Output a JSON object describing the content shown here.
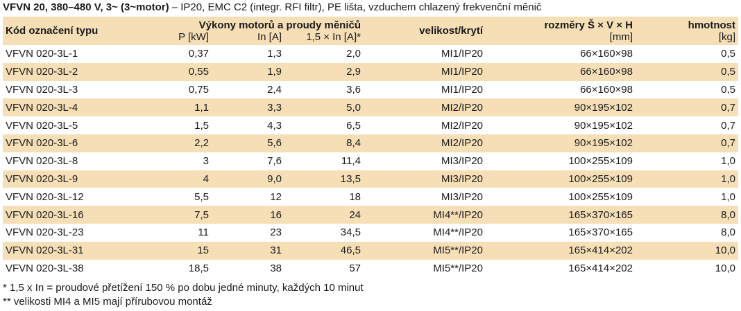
{
  "caption": {
    "bold": "VFVN 20, 380–480 V, 3~ (3~motor)",
    "rest": " – IP20, EMC C2 (integr. RFI filtr), PE lišta, vzduchem chlazený frekvenční měnič"
  },
  "headers": {
    "code": "Kód označení typu",
    "power_group": "Výkony motorů a proudy měničů",
    "size": "velikost/krytí",
    "dims": "rozměry Š × V × H",
    "weight": "hmotnost",
    "p_unit": "P [kW]",
    "in_unit": "In [A]",
    "overload_unit": "1,5 × In [A]*",
    "dims_unit": "[mm]",
    "weight_unit": "[kg]"
  },
  "rows": [
    {
      "code": "VFVN 020-3L-1",
      "p": "0,37",
      "in": "1,3",
      "ol": "2,0",
      "size": "MI1/IP20",
      "dims": "66×160×98",
      "mass": "0,5"
    },
    {
      "code": "VFVN 020-3L-2",
      "p": "0,55",
      "in": "1,9",
      "ol": "2,9",
      "size": "MI1/IP20",
      "dims": "66×160×98",
      "mass": "0,5"
    },
    {
      "code": "VFVN 020-3L-3",
      "p": "0,75",
      "in": "2,4",
      "ol": "3,6",
      "size": "MI1/IP20",
      "dims": "66×160×98",
      "mass": "0,5"
    },
    {
      "code": "VFVN 020-3L-4",
      "p": "1,1",
      "in": "3,3",
      "ol": "5,0",
      "size": "MI2/IP20",
      "dims": "90×195×102",
      "mass": "0,7"
    },
    {
      "code": "VFVN 020-3L-5",
      "p": "1,5",
      "in": "4,3",
      "ol": "6,5",
      "size": "MI2/IP20",
      "dims": "90×195×102",
      "mass": "0,7"
    },
    {
      "code": "VFVN 020-3L-6",
      "p": "2,2",
      "in": "5,6",
      "ol": "8,4",
      "size": "MI2/IP20",
      "dims": "90×195×102",
      "mass": "0,7"
    },
    {
      "code": "VFVN 020-3L-8",
      "p": "3",
      "in": "7,6",
      "ol": "11,4",
      "size": "MI3/IP20",
      "dims": "100×255×109",
      "mass": "1,0"
    },
    {
      "code": "VFVN 020-3L-9",
      "p": "4",
      "in": "9,0",
      "ol": "13,5",
      "size": "MI3/IP20",
      "dims": "100×255×109",
      "mass": "1,0"
    },
    {
      "code": "VFVN 020-3L-12",
      "p": "5,5",
      "in": "12",
      "ol": "18",
      "size": "MI3/IP20",
      "dims": "100×255×109",
      "mass": "1,0"
    },
    {
      "code": "VFVN 020-3L-16",
      "p": "7,5",
      "in": "16",
      "ol": "24",
      "size": "MI4**/IP20",
      "dims": "165×370×165",
      "mass": "8,0"
    },
    {
      "code": "VFVN 020-3L-23",
      "p": "11",
      "in": "23",
      "ol": "34,5",
      "size": "MI4**/IP20",
      "dims": "165×370×165",
      "mass": "8,0"
    },
    {
      "code": "VFVN 020-3L-31",
      "p": "15",
      "in": "31",
      "ol": "46,5",
      "size": "MI5**/IP20",
      "dims": "165×414×202",
      "mass": "10,0"
    },
    {
      "code": "VFVN 020-3L-38",
      "p": "18,5",
      "in": "38",
      "ol": "57",
      "size": "MI5**/IP20",
      "dims": "165×414×202",
      "mass": "10,0"
    }
  ],
  "notes": [
    "* 1,5 x In = proudové přetížení 150 % po dobu jedné minuty, každých 10 minut",
    "** velikosti MI4 a MI5 mají přírubovou montáž"
  ]
}
